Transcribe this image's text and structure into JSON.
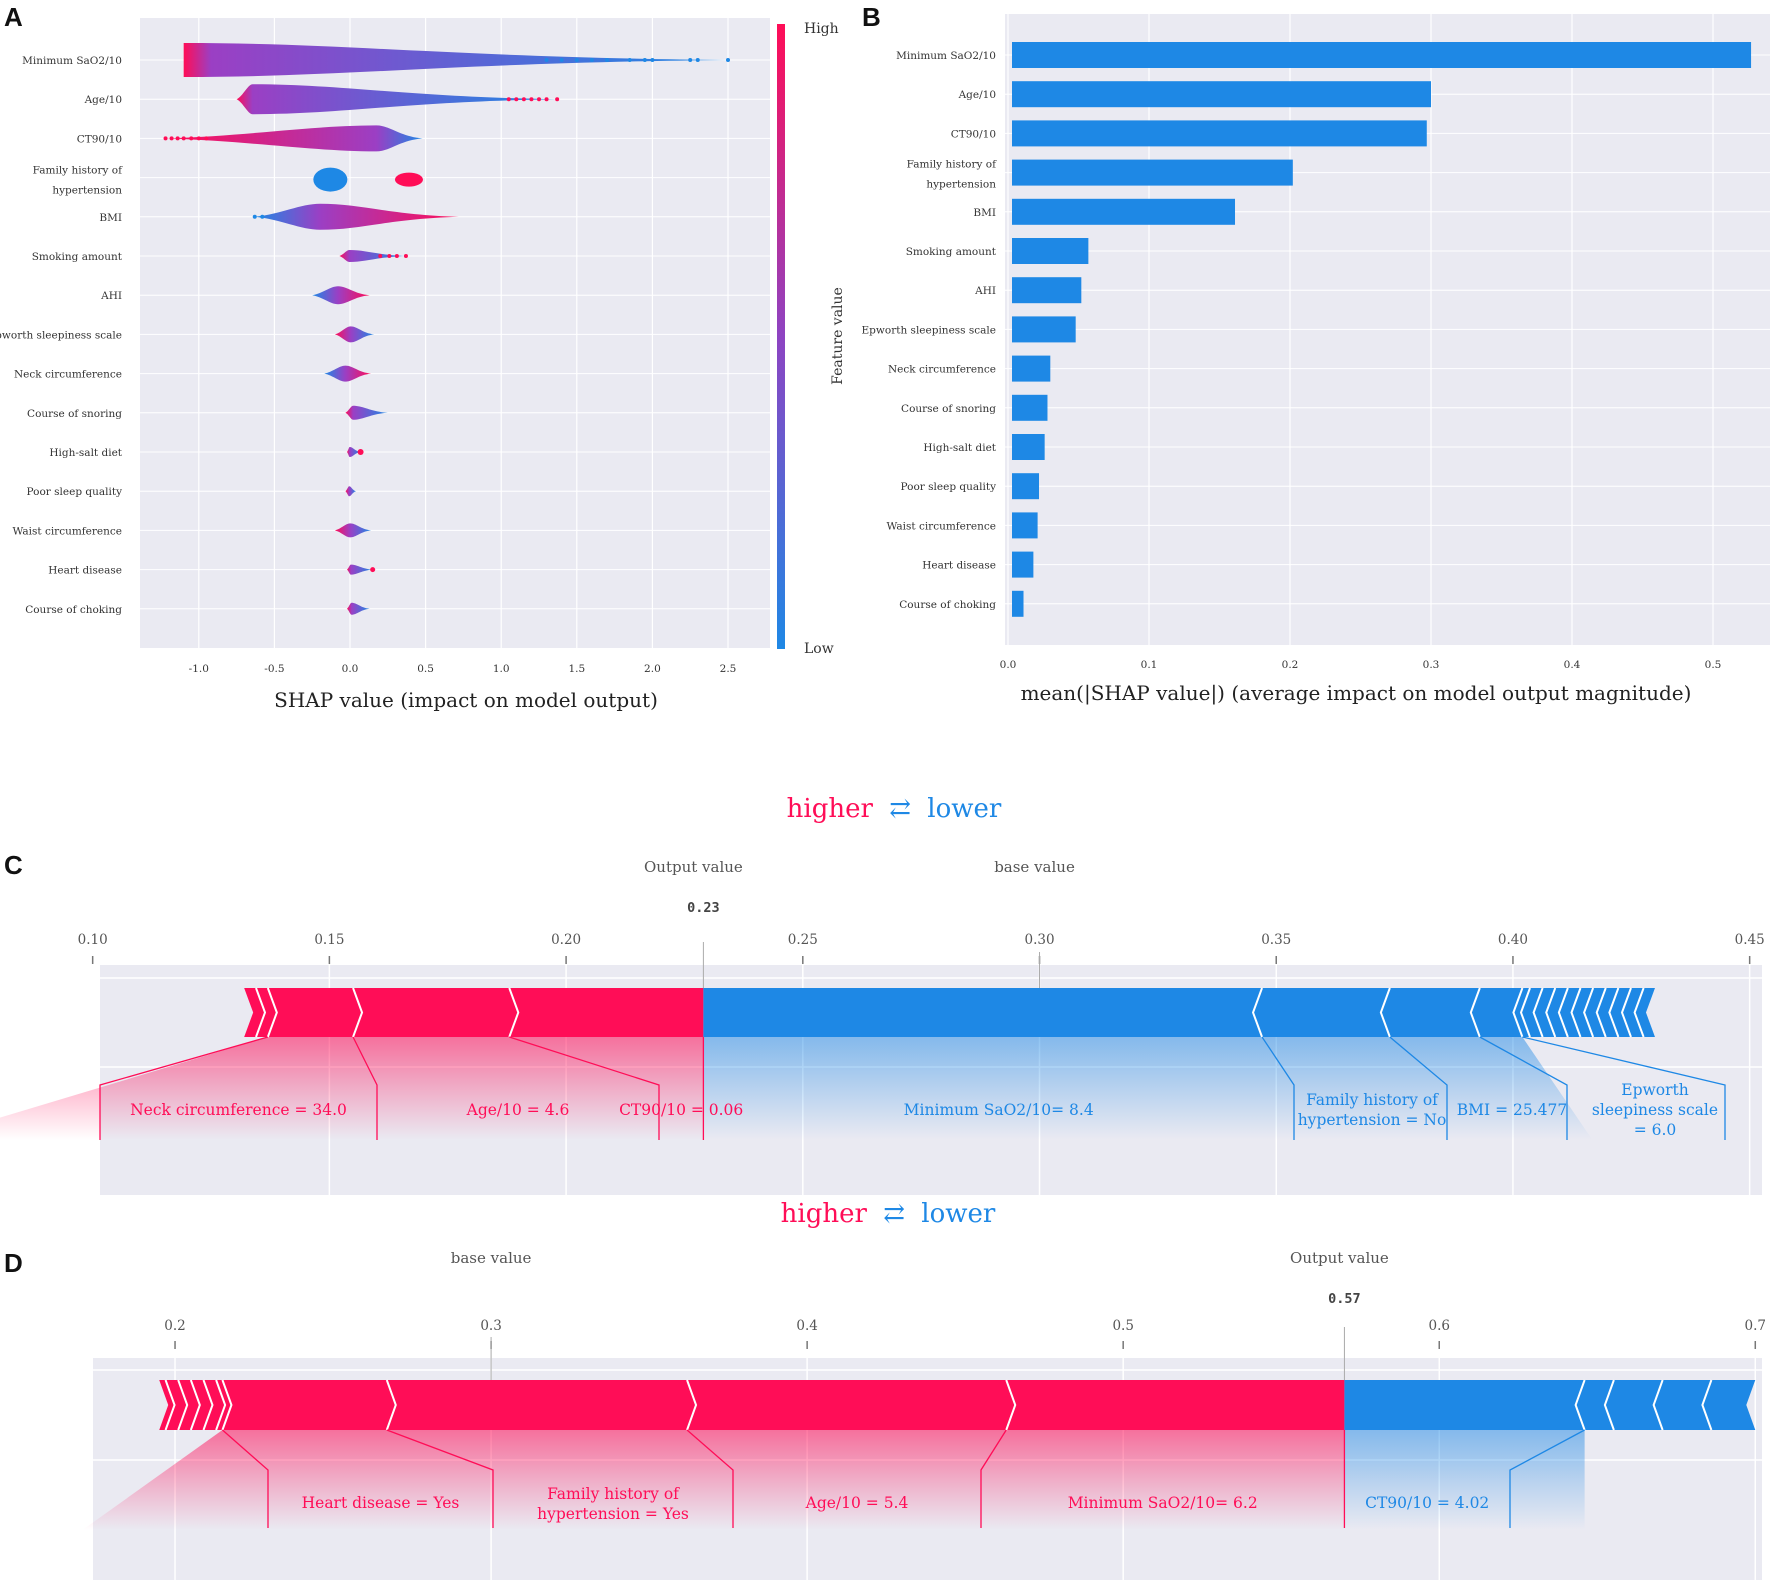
{
  "panels": {
    "a": "A",
    "b": "B",
    "c": "C",
    "d": "D"
  },
  "colors": {
    "pink": "#ff0d57",
    "blue": "#1e88e5",
    "grid_bg": "#eaeaf2"
  },
  "chart_data": [
    {
      "type": "scatter",
      "panel": "A",
      "title": "",
      "xlabel": "SHAP value (impact on model output)",
      "ylabel": "",
      "xlim": [
        -1.25,
        2.6
      ],
      "x_ticks": [
        -1.0,
        -0.5,
        0.0,
        0.5,
        1.0,
        1.5,
        2.0,
        2.5
      ],
      "tick_labels": [
        "-1.0",
        "-0.5",
        "0.0",
        "0.5",
        "1.0",
        "1.5",
        "2.0",
        "2.5"
      ],
      "features": [
        "Minimum SaO2/10",
        "Age/10",
        "CT90/10",
        "Family history of|hypertension",
        "BMI",
        "Smoking amount",
        "AHI",
        "Epworth sleepiness scale",
        "Neck circumference",
        "Course of snoring",
        "High-salt diet",
        "Poor sleep quality",
        "Waist circumference",
        "Heart disease",
        "Course of choking"
      ],
      "ranges": [
        [
          -1.1,
          2.5
        ],
        [
          -0.75,
          1.37
        ],
        [
          -1.22,
          0.48
        ],
        [
          -0.22,
          0.48
        ],
        [
          -0.63,
          0.72
        ],
        [
          -0.07,
          0.37
        ],
        [
          -0.25,
          0.13
        ],
        [
          -0.1,
          0.16
        ],
        [
          -0.17,
          0.14
        ],
        [
          -0.03,
          0.25
        ],
        [
          -0.02,
          0.07
        ],
        [
          -0.03,
          0.04
        ],
        [
          -0.1,
          0.14
        ],
        [
          -0.02,
          0.15
        ],
        [
          -0.02,
          0.13
        ]
      ],
      "colorbar": {
        "title": "Feature value",
        "high": "High",
        "low": "Low"
      }
    },
    {
      "type": "bar",
      "panel": "B",
      "orientation": "horizontal",
      "categories": [
        "Minimum SaO2/10",
        "Age/10",
        "CT90/10",
        "Family history of|hypertension",
        "BMI",
        "Smoking amount",
        "AHI",
        "Epworth sleepiness scale",
        "Neck circumference",
        "Course of snoring",
        "High-salt diet",
        "Poor sleep quality",
        "Waist circumference",
        "Heart disease",
        "Course of choking"
      ],
      "values": [
        0.527,
        0.3,
        0.297,
        0.202,
        0.161,
        0.057,
        0.052,
        0.048,
        0.03,
        0.028,
        0.026,
        0.022,
        0.021,
        0.018,
        0.011
      ],
      "xlim": [
        0,
        0.535
      ],
      "x_ticks": [
        0.0,
        0.1,
        0.2,
        0.3,
        0.4,
        0.5
      ],
      "tick_labels": [
        "0.0",
        "0.1",
        "0.2",
        "0.3",
        "0.4",
        "0.5"
      ],
      "xlabel": "mean(|SHAP value|) (average impact on model output magnitude)"
    },
    {
      "type": "bar",
      "subtype": "force",
      "panel": "C",
      "legend": {
        "higher": "higher",
        "arrows": "⇄",
        "lower": "lower"
      },
      "output_label": "Output value",
      "base_label": "base value",
      "output_value": 0.229,
      "output_value_label": "0.23",
      "base_value": 0.3,
      "xlim": [
        0.095,
        0.46
      ],
      "x_ticks": [
        0.1,
        0.15,
        0.2,
        0.25,
        0.3,
        0.35,
        0.4,
        0.45
      ],
      "tick_labels": [
        "0.10",
        "0.15",
        "0.20",
        "0.25",
        "0.30",
        "0.35",
        "0.40",
        "0.45"
      ],
      "red_segments": [
        {
          "label": "Neck circumference = 34.0",
          "start": 0.137,
          "end": 0.155
        },
        {
          "label": "Age/10 = 4.6",
          "start": 0.155,
          "end": 0.188
        },
        {
          "label": "CT90/10 = 0.06",
          "start": 0.188,
          "end": 0.229
        }
      ],
      "red_small_start": 0.132,
      "blue_segments": [
        {
          "label": "Minimum  SaO2/10= 8.4",
          "start": 0.229,
          "end": 0.347
        },
        {
          "label": "Family history of|hypertension = No",
          "start": 0.347,
          "end": 0.374
        },
        {
          "label": "BMI = 25.477",
          "start": 0.374,
          "end": 0.393
        },
        {
          "label": "Epworth|sleepiness scale|= 6.0",
          "start": 0.393,
          "end": 0.402
        }
      ],
      "blue_small_end": 0.43
    },
    {
      "type": "bar",
      "subtype": "force",
      "panel": "D",
      "legend": {
        "higher": "higher",
        "arrows": "⇄",
        "lower": "lower"
      },
      "output_label": "Output value",
      "base_label": "base value",
      "output_value": 0.57,
      "output_value_label": "0.57",
      "base_value": 0.3,
      "xlim": [
        0.1655,
        0.7325
      ],
      "x_ticks": [
        0.2,
        0.3,
        0.4,
        0.5,
        0.6,
        0.7
      ],
      "tick_labels": [
        "0.2",
        "0.3",
        "0.4",
        "0.5",
        "0.6",
        "0.7"
      ],
      "red_segments": [
        {
          "label": "Heart disease = Yes",
          "start": 0.215,
          "end": 0.267
        },
        {
          "label": "Family history of|hypertension = Yes",
          "start": 0.267,
          "end": 0.362
        },
        {
          "label": "Age/10 = 5.4",
          "start": 0.362,
          "end": 0.463
        },
        {
          "label": "Minimum  SaO2/10= 6.2",
          "start": 0.463,
          "end": 0.57
        }
      ],
      "red_small_start": 0.195,
      "blue_segments": [
        {
          "label": "CT90/10 = 4.02",
          "start": 0.57,
          "end": 0.646
        }
      ],
      "blue_small_end": 0.7
    }
  ]
}
